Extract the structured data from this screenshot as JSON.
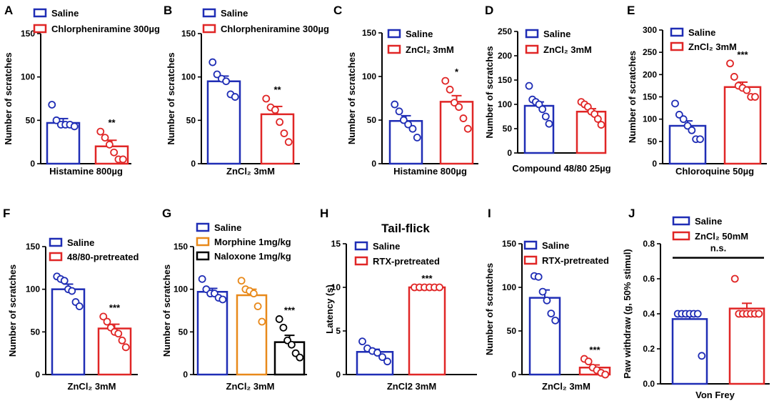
{
  "figure": {
    "description_free": true
  },
  "chart_data": [
    {
      "id": "A",
      "type": "bar",
      "letter": "A",
      "ylabel": "Number of scratches",
      "xlabel": "Histamine 800µg",
      "ylim": [
        0,
        150
      ],
      "yticks": [
        0,
        50,
        100,
        150
      ],
      "legend": [
        "Saline",
        "Chlorpheniramine 300µg"
      ],
      "colors": [
        "#1f2db5",
        "#e02626"
      ],
      "values": [
        47,
        20
      ],
      "errors": [
        5,
        7
      ],
      "points": [
        [
          68,
          50,
          45,
          45,
          45,
          43
        ],
        [
          37,
          30,
          22,
          13,
          5,
          5
        ]
      ],
      "significance": [
        "",
        "**"
      ]
    },
    {
      "id": "B",
      "type": "bar",
      "letter": "B",
      "ylabel": "Number of scratches",
      "xlabel": "ZnCl₂ 3mM",
      "ylim": [
        0,
        150
      ],
      "yticks": [
        0,
        50,
        100,
        150
      ],
      "legend": [
        "Saline",
        "Chlorpheniramine  300µg"
      ],
      "colors": [
        "#1f2db5",
        "#e02626"
      ],
      "values": [
        95,
        57
      ],
      "errors": [
        6,
        9
      ],
      "points": [
        [
          117,
          103,
          98,
          95,
          80,
          77
        ],
        [
          75,
          65,
          62,
          48,
          35,
          25
        ]
      ],
      "significance": [
        "",
        "**"
      ]
    },
    {
      "id": "C",
      "type": "bar",
      "letter": "C",
      "ylabel": "Number of scratches",
      "xlabel": "Histamine 800µg",
      "ylim": [
        0,
        150
      ],
      "yticks": [
        0,
        50,
        100,
        150
      ],
      "legend": [
        "Saline",
        "ZnCl₂ 3mM"
      ],
      "colors": [
        "#1f2db5",
        "#e02626"
      ],
      "values": [
        49,
        71
      ],
      "errors": [
        6,
        7
      ],
      "points": [
        [
          68,
          60,
          50,
          45,
          40,
          30
        ],
        [
          95,
          85,
          70,
          65,
          52,
          40
        ]
      ],
      "significance": [
        "",
        "*"
      ]
    },
    {
      "id": "D",
      "type": "bar",
      "letter": "D",
      "ylabel": "Number of scratches",
      "xlabel": "Compound 48/80  25µg",
      "ylim": [
        0,
        250
      ],
      "yticks": [
        0,
        50,
        100,
        150,
        200,
        250
      ],
      "legend": [
        "Saline",
        "ZnCl₂  3mM"
      ],
      "colors": [
        "#1f2db5",
        "#e02626"
      ],
      "values": [
        97,
        85
      ],
      "errors": [
        8,
        6
      ],
      "points": [
        [
          138,
          110,
          105,
          100,
          90,
          75,
          60
        ],
        [
          105,
          100,
          95,
          85,
          80,
          70,
          58
        ]
      ],
      "significance": [
        "",
        ""
      ]
    },
    {
      "id": "E",
      "type": "bar",
      "letter": "E",
      "ylabel": "Number of scratches",
      "xlabel": "Chloroquine 50µg",
      "ylim": [
        0,
        300
      ],
      "yticks": [
        0,
        50,
        100,
        150,
        200,
        250,
        300
      ],
      "legend": [
        "Saline",
        "ZnCl₂ 3mM"
      ],
      "colors": [
        "#1f2db5",
        "#e02626"
      ],
      "values": [
        85,
        172
      ],
      "errors": [
        11,
        11
      ],
      "points": [
        [
          135,
          110,
          100,
          85,
          75,
          55,
          55
        ],
        [
          225,
          195,
          175,
          170,
          165,
          150,
          150
        ]
      ],
      "significance": [
        "",
        "***"
      ]
    },
    {
      "id": "F",
      "type": "bar",
      "letter": "F",
      "ylabel": "Number of scratches",
      "xlabel": "ZnCl₂  3mM",
      "ylim": [
        0,
        150
      ],
      "yticks": [
        0,
        50,
        100,
        150
      ],
      "legend": [
        "Saline",
        "48/80-pretreated"
      ],
      "colors": [
        "#1f2db5",
        "#e02626"
      ],
      "values": [
        100,
        54
      ],
      "errors": [
        6,
        5
      ],
      "points": [
        [
          115,
          112,
          110,
          100,
          98,
          85,
          80
        ],
        [
          68,
          62,
          55,
          50,
          48,
          40,
          32
        ]
      ],
      "significance": [
        "",
        "***"
      ]
    },
    {
      "id": "G",
      "type": "bar",
      "letter": "G",
      "ylabel": "Number of scratches",
      "xlabel": "ZnCl₂ 3mM",
      "ylim": [
        0,
        150
      ],
      "yticks": [
        0,
        50,
        100,
        150
      ],
      "legend": [
        "Saline",
        "Morphine 1mg/kg",
        "Naloxone 1mg/kg"
      ],
      "colors": [
        "#1f2db5",
        "#e8891a",
        "#000000"
      ],
      "values": [
        97,
        93,
        38
      ],
      "errors": [
        4,
        7,
        8
      ],
      "points": [
        [
          112,
          100,
          95,
          95,
          90,
          88
        ],
        [
          110,
          100,
          98,
          95,
          80,
          62
        ],
        [
          65,
          55,
          40,
          35,
          25,
          20
        ]
      ],
      "significance": [
        "",
        "",
        "***"
      ]
    },
    {
      "id": "H",
      "type": "bar",
      "letter": "H",
      "title": "Tail-flick",
      "ylabel": "Latency (s)",
      "xlabel": "ZnCl2 3mM",
      "ylim": [
        0,
        15
      ],
      "yticks": [
        0,
        5,
        10,
        15
      ],
      "legend": [
        "Saline",
        "RTX-pretreated"
      ],
      "colors": [
        "#1f2db5",
        "#e02626"
      ],
      "values": [
        2.6,
        10
      ],
      "errors": [
        0.3,
        0
      ],
      "points": [
        [
          3.8,
          3.0,
          2.7,
          2.5,
          2.0,
          1.5
        ],
        [
          10,
          10,
          10,
          10,
          10,
          10
        ]
      ],
      "significance": [
        "",
        "***"
      ]
    },
    {
      "id": "I",
      "type": "bar",
      "letter": "I",
      "ylabel": "Number of scratches",
      "xlabel": "ZnCl₂  3mM",
      "ylim": [
        0,
        150
      ],
      "yticks": [
        0,
        50,
        100,
        150
      ],
      "legend": [
        "Saline",
        "RTX-pretreated"
      ],
      "colors": [
        "#1f2db5",
        "#e02626"
      ],
      "values": [
        88,
        8
      ],
      "errors": [
        9,
        3
      ],
      "points": [
        [
          113,
          112,
          95,
          85,
          70,
          62
        ],
        [
          18,
          15,
          8,
          5,
          2,
          0
        ]
      ],
      "significance": [
        "",
        "***"
      ]
    },
    {
      "id": "J",
      "type": "bar",
      "letter": "J",
      "ylabel": "Paw withdraw (g, 50% stimul)",
      "xlabel": "Von Frey",
      "ylim": [
        0,
        0.8
      ],
      "yticks": [
        0.0,
        0.2,
        0.4,
        0.6,
        0.8
      ],
      "ytick_labels": [
        "0.0",
        "0.2",
        "0.4",
        "0.6",
        "0.8"
      ],
      "legend": [
        "Saline",
        "ZnCl₂ 50mM"
      ],
      "colors": [
        "#1f2db5",
        "#e02626"
      ],
      "values": [
        0.37,
        0.43
      ],
      "errors": [
        0.03,
        0.03
      ],
      "points": [
        [
          0.4,
          0.4,
          0.4,
          0.4,
          0.4,
          0.4,
          0.16
        ],
        [
          0.6,
          0.4,
          0.4,
          0.4,
          0.4,
          0.4,
          0.4
        ]
      ],
      "significance": [
        "",
        ""
      ],
      "bracket_label": "n.s."
    }
  ]
}
